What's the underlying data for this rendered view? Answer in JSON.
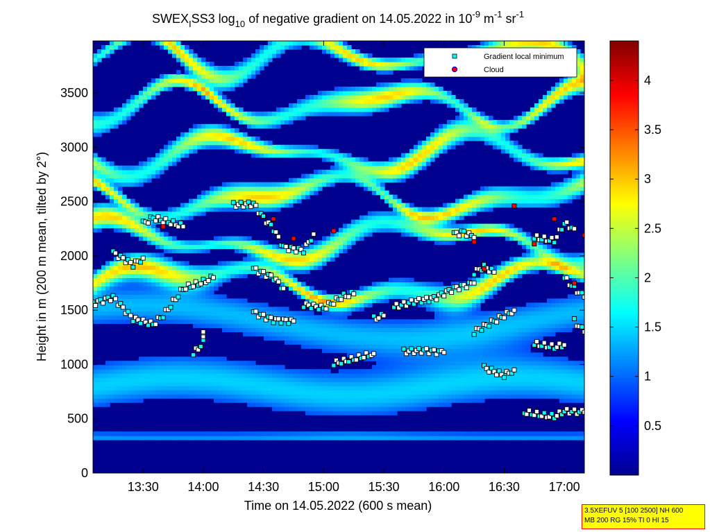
{
  "chart_data": {
    "type": "heatmap",
    "title": "SWEX_I SS3 log10 of negative gradient on 14.05.2022 in 10^-9 m^-1 sr^-1",
    "title_parts": {
      "a": "SWEX",
      "a_sub": "I",
      "b": "SS3 log",
      "b_sub": "10",
      "c": " of negative gradient on 14.05.2022 in 10",
      "c_sup": "-9",
      "d": " m",
      "d_sup": "-1",
      "e": " sr",
      "e_sup": "-1"
    },
    "xlabel": "Time on 14.05.2022 (600 s mean)",
    "ylabel": "Height in m (200 m mean, tilted by 2°)",
    "xlim": [
      "13:05",
      "17:10"
    ],
    "x_ticks": [
      "13:30",
      "14:00",
      "14:30",
      "15:00",
      "15:30",
      "16:00",
      "16:30",
      "17:00"
    ],
    "ylim": [
      0,
      3980
    ],
    "y_ticks": [
      "0",
      "500",
      "1000",
      "1500",
      "2000",
      "2500",
      "3000",
      "3500"
    ],
    "colorbar": {
      "range": [
        0,
        4.4
      ],
      "ticks": [
        "0.5",
        "1",
        "1.5",
        "2",
        "2.5",
        "3",
        "3.5",
        "4"
      ],
      "colormap": "jet"
    },
    "legend": {
      "placement": "top-right",
      "entries": [
        {
          "label": "Gradient local minimum",
          "marker": "square",
          "color": "#00ffff"
        },
        {
          "label": "Cloud",
          "marker": "circle",
          "color": "#ff0000"
        }
      ]
    },
    "series": [
      {
        "name": "Gradient local minimum",
        "layers": [
          {
            "points": [
              [
                "13:05",
                1560
              ],
              [
                "13:15",
                1620
              ],
              [
                "13:25",
                1420
              ],
              [
                "13:35",
                1370
              ],
              [
                "13:40",
                1450
              ],
              [
                "13:50",
                1700
              ],
              [
                "14:00",
                1760
              ],
              [
                "14:05",
                1800
              ]
            ]
          },
          {
            "points": [
              [
                "13:15",
                2030
              ],
              [
                "13:25",
                1920
              ],
              [
                "13:30",
                1980
              ]
            ]
          },
          {
            "points": [
              [
                "13:30",
                2300
              ],
              [
                "13:35",
                2350
              ],
              [
                "13:45",
                2300
              ],
              [
                "13:50",
                2270
              ]
            ]
          },
          {
            "points": [
              [
                "13:55",
                1100
              ],
              [
                "14:00",
                1200
              ],
              [
                "14:00",
                1300
              ]
            ]
          },
          {
            "points": [
              [
                "14:15",
                2470
              ],
              [
                "14:25",
                2480
              ],
              [
                "14:30",
                2350
              ],
              [
                "14:35",
                2250
              ],
              [
                "14:40",
                2080
              ],
              [
                "14:50",
                2050
              ],
              [
                "14:55",
                2200
              ]
            ]
          },
          {
            "points": [
              [
                "14:25",
                1880
              ],
              [
                "14:35",
                1800
              ],
              [
                "14:40",
                1700
              ]
            ]
          },
          {
            "points": [
              [
                "14:25",
                1480
              ],
              [
                "14:35",
                1410
              ],
              [
                "14:45",
                1400
              ]
            ]
          },
          {
            "points": [
              [
                "14:50",
                1550
              ],
              [
                "15:00",
                1520
              ],
              [
                "15:10",
                1630
              ],
              [
                "15:15",
                1650
              ]
            ]
          },
          {
            "points": [
              [
                "15:05",
                1010
              ],
              [
                "15:15",
                1050
              ],
              [
                "15:25",
                1100
              ]
            ]
          },
          {
            "points": [
              [
                "15:25",
                1420
              ],
              [
                "15:30",
                1450
              ]
            ]
          },
          {
            "points": [
              [
                "15:35",
                1530
              ],
              [
                "15:45",
                1580
              ],
              [
                "15:55",
                1610
              ],
              [
                "16:05",
                1700
              ],
              [
                "16:15",
                1750
              ]
            ]
          },
          {
            "points": [
              [
                "15:40",
                1120
              ],
              [
                "15:50",
                1130
              ],
              [
                "16:00",
                1110
              ]
            ]
          },
          {
            "points": [
              [
                "16:05",
                2200
              ],
              [
                "16:10",
                2220
              ],
              [
                "16:15",
                2170
              ]
            ]
          },
          {
            "points": [
              [
                "16:15",
                1850
              ],
              [
                "16:20",
                1900
              ],
              [
                "16:25",
                1850
              ]
            ]
          },
          {
            "points": [
              [
                "16:15",
                1300
              ],
              [
                "16:25",
                1400
              ],
              [
                "16:35",
                1500
              ]
            ]
          },
          {
            "points": [
              [
                "16:20",
                970
              ],
              [
                "16:30",
                900
              ],
              [
                "16:35",
                950
              ]
            ]
          },
          {
            "points": [
              [
                "16:40",
                560
              ],
              [
                "16:50",
                530
              ],
              [
                "16:55",
                520
              ],
              [
                "17:00",
                570
              ],
              [
                "17:10",
                560
              ]
            ]
          },
          {
            "points": [
              [
                "16:45",
                1190
              ],
              [
                "16:55",
                1160
              ],
              [
                "17:00",
                1180
              ]
            ]
          },
          {
            "points": [
              [
                "16:45",
                2170
              ],
              [
                "16:55",
                2140
              ],
              [
                "17:00",
                2300
              ],
              [
                "17:05",
                2250
              ]
            ]
          },
          {
            "points": [
              [
                "17:00",
                1800
              ],
              [
                "17:05",
                1700
              ],
              [
                "17:10",
                1620
              ]
            ]
          },
          {
            "points": [
              [
                "17:05",
                1400
              ],
              [
                "17:10",
                1300
              ]
            ]
          }
        ]
      },
      {
        "name": "Cloud",
        "points": [
          [
            "13:40",
            2270
          ],
          [
            "14:35",
            2340
          ],
          [
            "14:45",
            2160
          ],
          [
            "15:05",
            2230
          ],
          [
            "16:15",
            2130
          ],
          [
            "16:20",
            1880
          ],
          [
            "16:35",
            2460
          ],
          [
            "16:45",
            2110
          ],
          [
            "16:55",
            2340
          ],
          [
            "17:05",
            1750
          ],
          [
            "17:10",
            2190
          ]
        ]
      }
    ],
    "grid": false
  },
  "infobox": {
    "line1": "3.5XEFUV 5 [100 2500] NH 600",
    "line2": "MB 200 RG 15% TI 0 HI 15"
  }
}
